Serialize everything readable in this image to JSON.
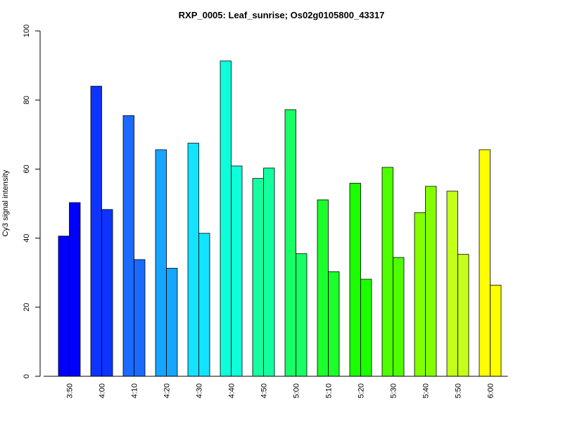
{
  "chart_data": {
    "type": "bar",
    "title": "RXP_0005: Leaf_sunrise; Os02g0105800_43317",
    "xlabel": "",
    "ylabel": "Cy3 signal intensity",
    "ylim": [
      0,
      100
    ],
    "yticks": [
      "0",
      "20",
      "40",
      "60",
      "80",
      "100"
    ],
    "categories": [
      "3:50",
      "4:00",
      "4:10",
      "4:20",
      "4:30",
      "4:40",
      "4:50",
      "5:00",
      "5:10",
      "5:20",
      "5:30",
      "5:40",
      "5:50",
      "6:00"
    ],
    "series": [
      {
        "values": [
          40.6,
          84.0,
          75.5,
          65.6,
          67.5,
          91.3,
          57.3,
          77.2,
          51.1,
          55.9,
          60.5,
          47.4,
          53.6,
          65.6
        ]
      },
      {
        "values": [
          50.3,
          48.3,
          33.8,
          31.3,
          41.4,
          60.9,
          60.3,
          35.5,
          30.3,
          28.1,
          34.4,
          55.0,
          35.3,
          26.4
        ]
      }
    ],
    "colors": [
      "#0000ff",
      "#0d33ff",
      "#1a6aff",
      "#16a5ff",
      "#13e3ff",
      "#0fffdb",
      "#14ff9f",
      "#18ff65",
      "#1cff2c",
      "#1cff00",
      "#4eff00",
      "#84ff00",
      "#c4ff1a",
      "#ffff00"
    ],
    "grid": false,
    "legend": "none"
  }
}
